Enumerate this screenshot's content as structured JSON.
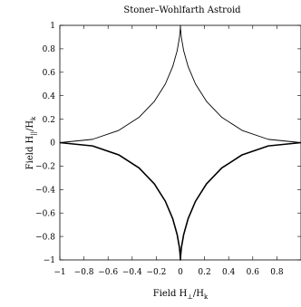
{
  "chart_data": {
    "type": "line",
    "title": "Stoner–Wohlfarth Astroid",
    "xlabel": "Field H⊥/Hk",
    "ylabel": "Field H||/Hk",
    "xlim": [
      -1,
      1
    ],
    "ylim": [
      -1,
      1
    ],
    "x_ticks": [
      -1,
      -0.8,
      -0.6,
      -0.4,
      -0.2,
      0,
      0.2,
      0.4,
      0.6,
      0.8
    ],
    "x_tick_labels": [
      "−1",
      "−0.8",
      "−0.6",
      "−0.4",
      "−0.2",
      "0",
      "0.2",
      "0.4",
      "0.6",
      "0.8"
    ],
    "y_ticks": [
      -1,
      -0.8,
      -0.6,
      -0.4,
      -0.2,
      0,
      0.2,
      0.4,
      0.6,
      0.8,
      1
    ],
    "y_tick_labels": [
      "−1",
      "−0.8",
      "−0.6",
      "−0.4",
      "−0.2",
      "0",
      "0.2",
      "0.4",
      "0.6",
      "0.8",
      "1"
    ],
    "grid": false,
    "series": [
      {
        "curve": "astroid |x|^(2/3) + |y|^(2/3) = 1, upper half",
        "x": [
          -1,
          -0.729,
          -0.512,
          -0.343,
          -0.216,
          -0.125,
          -0.064,
          -0.027,
          -0.008,
          -0.001,
          0,
          0.001,
          0.008,
          0.027,
          0.064,
          0.125,
          0.216,
          0.343,
          0.512,
          0.729,
          1
        ],
        "y": [
          0,
          0.028,
          0.104,
          0.216,
          0.352,
          0.5,
          0.648,
          0.784,
          0.896,
          0.972,
          1,
          0.972,
          0.896,
          0.784,
          0.648,
          0.5,
          0.352,
          0.216,
          0.104,
          0.028,
          0
        ],
        "color": "#000000",
        "weight": "thin"
      },
      {
        "curve": "astroid |x|^(2/3) + |y|^(2/3) = 1, lower half",
        "x": [
          -1,
          -0.729,
          -0.512,
          -0.343,
          -0.216,
          -0.125,
          -0.064,
          -0.027,
          -0.008,
          -0.001,
          0,
          0.001,
          0.008,
          0.027,
          0.064,
          0.125,
          0.216,
          0.343,
          0.512,
          0.729,
          1
        ],
        "y": [
          0,
          -0.028,
          -0.104,
          -0.216,
          -0.352,
          -0.5,
          -0.648,
          -0.784,
          -0.896,
          -0.972,
          -1,
          -0.972,
          -0.896,
          -0.784,
          -0.648,
          -0.5,
          -0.352,
          -0.216,
          -0.104,
          -0.028,
          0
        ],
        "color": "#000000",
        "weight": "bold"
      }
    ]
  }
}
